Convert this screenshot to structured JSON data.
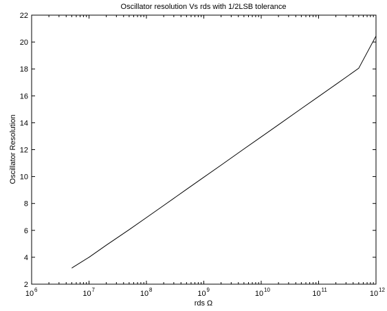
{
  "chart_data": {
    "type": "line",
    "title": "Oscillator resolution Vs rds with 1/2LSB tolerance",
    "xlabel": "rds Ω",
    "ylabel": "Oscillator Resolution",
    "xscale": "log",
    "xlim": [
      1000000,
      1000000000000
    ],
    "ylim": [
      2,
      22
    ],
    "x_tick_base": "10",
    "x_tick_exponents": [
      "6",
      "7",
      "8",
      "9",
      "10",
      "11",
      "12"
    ],
    "y_ticks": [
      "2",
      "4",
      "6",
      "8",
      "10",
      "12",
      "14",
      "16",
      "18",
      "20",
      "22"
    ],
    "grid": false,
    "line_color": "#000000",
    "series": [
      {
        "x": [
          5000000,
          10000000,
          20000000,
          50000000,
          100000000,
          200000000,
          500000000,
          1000000000,
          2000000000,
          5000000000,
          10000000000,
          20000000000,
          50000000000,
          100000000000,
          200000000000,
          500000000000,
          1000000000000
        ],
        "values": [
          3.2,
          4.0,
          4.9,
          6.05,
          6.95,
          7.85,
          9.05,
          9.95,
          10.85,
          12.05,
          12.95,
          13.85,
          15.05,
          15.95,
          16.85,
          18.05,
          20.45
        ]
      }
    ]
  }
}
